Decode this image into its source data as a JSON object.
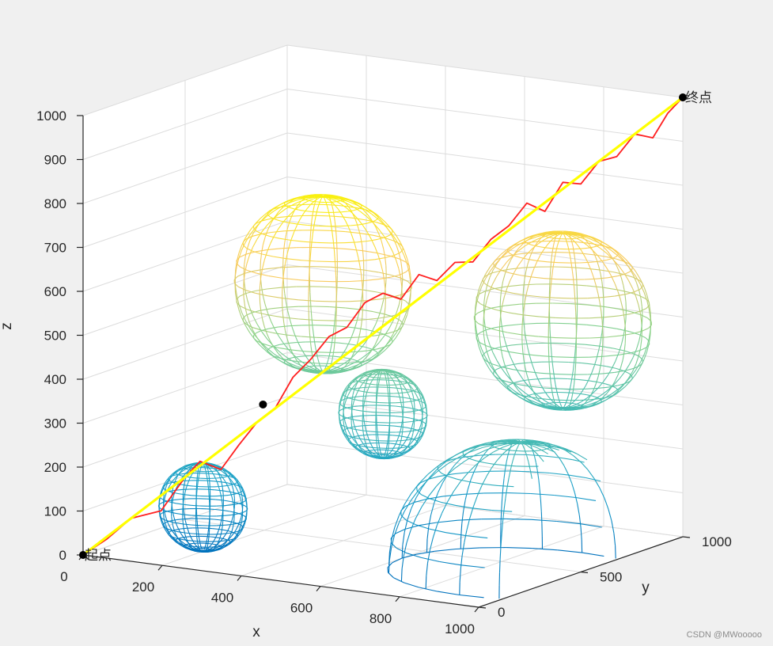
{
  "chart_data": {
    "type": "3d-line-mesh",
    "xlabel": "x",
    "ylabel": "y",
    "zlabel": "z",
    "xlim": [
      0,
      1000
    ],
    "ylim": [
      0,
      1000
    ],
    "zlim": [
      0,
      1000
    ],
    "x_ticks": [
      "0",
      "200",
      "400",
      "600",
      "800",
      "1000"
    ],
    "y_ticks": [
      "0",
      "500",
      "1000"
    ],
    "z_ticks": [
      "0",
      "100",
      "200",
      "300",
      "400",
      "500",
      "600",
      "700",
      "800",
      "900",
      "1000"
    ],
    "grid": true,
    "colors": {
      "planned_path": "#ff2020",
      "smoothed_path": "#ffff00",
      "marker": "#000000",
      "mesh_colormap": [
        "#0072bd",
        "#19a0c8",
        "#4dbeb0",
        "#8bd38a",
        "#f8ca60",
        "#f9f10e"
      ]
    },
    "obstacles": [
      {
        "type": "sphere",
        "center": [
          200,
          200,
          100
        ],
        "radius": 100
      },
      {
        "type": "sphere",
        "center": [
          500,
          500,
          300
        ],
        "radius": 100
      },
      {
        "type": "sphere",
        "center": [
          400,
          400,
          600
        ],
        "radius": 200
      },
      {
        "type": "sphere",
        "center": [
          800,
          800,
          500
        ],
        "radius": 200
      },
      {
        "type": "sphere",
        "center": [
          900,
          400,
          0
        ],
        "radius": 300
      }
    ],
    "start_point": {
      "label": "起点",
      "x": 0,
      "y": 0,
      "z": 0
    },
    "end_point": {
      "label": "终点",
      "x": 1000,
      "y": 1000,
      "z": 1000
    },
    "waypoint": {
      "x": 300,
      "y": 300,
      "z": 330
    },
    "series": [
      {
        "key": "planned",
        "x": [
          0,
          40,
          80,
          130,
          170,
          195,
          230,
          260,
          290,
          320,
          350,
          380,
          410,
          440,
          470,
          500,
          530,
          560,
          590,
          620,
          650,
          680,
          710,
          740,
          770,
          800,
          830,
          860,
          890,
          920,
          950,
          975,
          1000
        ],
        "y": [
          0,
          40,
          80,
          130,
          170,
          195,
          230,
          260,
          290,
          320,
          350,
          380,
          410,
          440,
          470,
          500,
          530,
          560,
          590,
          620,
          650,
          680,
          710,
          740,
          770,
          800,
          830,
          860,
          890,
          920,
          950,
          975,
          1000
        ],
        "z": [
          0,
          35,
          80,
          95,
          170,
          205,
          185,
          240,
          290,
          320,
          390,
          430,
          480,
          500,
          555,
          575,
          560,
          615,
          600,
          640,
          640,
          690,
          720,
          770,
          750,
          815,
          810,
          860,
          870,
          920,
          910,
          965,
          1000
        ]
      },
      {
        "key": "smoothed",
        "x": [
          0,
          1000
        ],
        "y": [
          0,
          1000
        ],
        "z": [
          0,
          1000
        ]
      }
    ]
  },
  "watermark": "CSDN @MWooooo"
}
